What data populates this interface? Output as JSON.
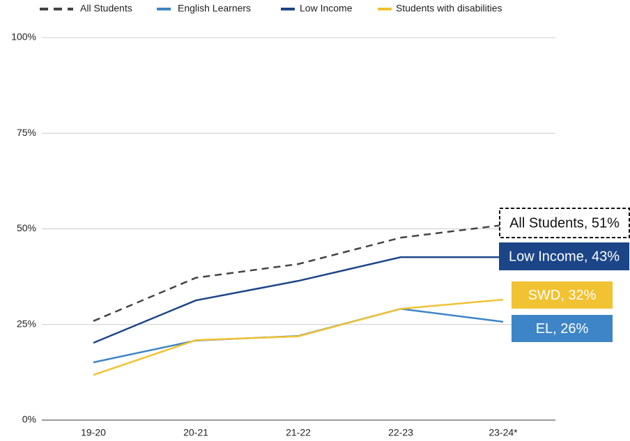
{
  "chart_data": {
    "type": "line",
    "categories": [
      "19-20",
      "20-21",
      "21-22",
      "22-23",
      "23-24*"
    ],
    "series": [
      {
        "name": "All Students",
        "color": "#444444",
        "dashed": true,
        "values": [
          25.9,
          37.2,
          40.8,
          47.7,
          51
        ],
        "end_label": "All Students, 51%"
      },
      {
        "name": "English Learners",
        "color": "#3d85c6",
        "dashed": false,
        "values": [
          15.1,
          20.8,
          22.0,
          29.1,
          25.7
        ],
        "end_label": "EL, 26%"
      },
      {
        "name": "Low Income",
        "color": "#1c4587",
        "dashed": false,
        "values": [
          20.2,
          31.3,
          36.4,
          42.6,
          42.6
        ],
        "end_label": "Low Income, 43%"
      },
      {
        "name": "Students with disabilities",
        "color": "#f1c232",
        "dashed": false,
        "values": [
          11.8,
          20.9,
          21.9,
          29.1,
          31.5
        ],
        "end_label": "SWD, 32%"
      }
    ],
    "ylim": [
      0,
      100
    ],
    "yticks": [
      {
        "value": 0,
        "label": "0%"
      },
      {
        "value": 25,
        "label": "25%"
      },
      {
        "value": 50,
        "label": "50%"
      },
      {
        "value": 75,
        "label": "75%"
      },
      {
        "value": 100,
        "label": "100%"
      }
    ],
    "grid": true,
    "legend": "top"
  }
}
